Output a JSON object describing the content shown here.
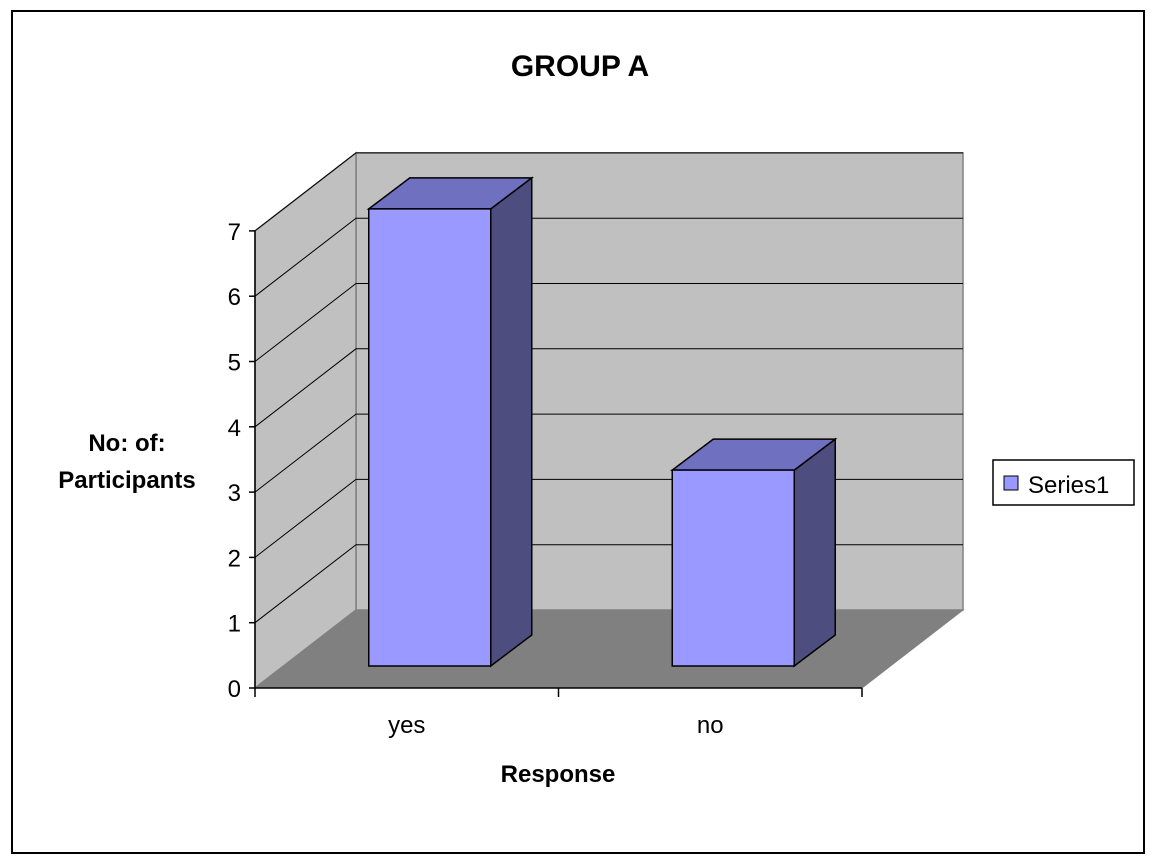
{
  "chart_data": {
    "type": "bar",
    "title": "GROUP A",
    "xlabel": "Response",
    "ylabel_lines": [
      "No: of:",
      "Participants"
    ],
    "categories": [
      "yes",
      "no"
    ],
    "series": [
      {
        "name": "Series1",
        "values": [
          7,
          3
        ]
      }
    ],
    "ylim": [
      0,
      7
    ],
    "yticks": [
      0,
      1,
      2,
      3,
      4,
      5,
      6,
      7
    ],
    "grid": true,
    "three_d": true,
    "legend": {
      "position": "right",
      "entries": [
        "Series1"
      ]
    },
    "colors": {
      "bar_front": "#9999ff",
      "bar_top": "#7070c0",
      "bar_side": "#4d4d80",
      "back_wall": "#c0c0c0",
      "side_wall": "#c0c0c0",
      "floor": "#808080"
    }
  }
}
